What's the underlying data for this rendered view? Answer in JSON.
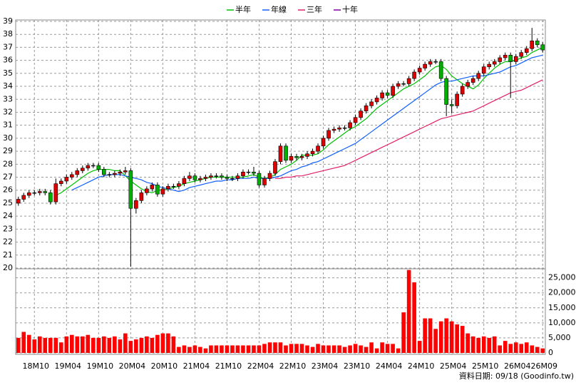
{
  "chart_data": [
    {
      "type": "candlestick",
      "categories": [
        null,
        null,
        null,
        "18M10",
        null,
        null,
        null,
        null,
        null,
        "19M04",
        null,
        null,
        null,
        null,
        null,
        "19M10",
        null,
        null,
        null,
        null,
        null,
        "20M04",
        null,
        null,
        null,
        null,
        null,
        "20M10",
        null,
        null,
        null,
        null,
        null,
        "21M04",
        null,
        null,
        null,
        null,
        null,
        "21M10",
        null,
        null,
        null,
        null,
        null,
        "22M04",
        null,
        null,
        null,
        null,
        null,
        "22M10",
        null,
        null,
        null,
        null,
        null,
        "23M04",
        null,
        null,
        null,
        null,
        null,
        "23M10",
        null,
        null,
        null,
        null,
        null,
        "24M04",
        null,
        null,
        null,
        null,
        null,
        "24M10",
        null,
        null,
        null,
        null,
        null,
        "25M04",
        null,
        null,
        null,
        null,
        null,
        "25M10",
        null,
        null,
        null,
        null,
        null,
        "26M04",
        null,
        null,
        null,
        null,
        "26M09"
      ],
      "open": [
        25.0,
        25.3,
        25.6,
        25.8,
        25.8,
        25.9,
        25.8,
        25.1,
        26.5,
        26.7,
        27.0,
        27.2,
        27.5,
        27.7,
        27.9,
        27.9,
        27.6,
        27.2,
        27.2,
        27.3,
        27.4,
        27.5,
        24.6,
        25.2,
        25.8,
        26.1,
        26.4,
        25.7,
        26.1,
        26.3,
        26.3,
        26.5,
        26.9,
        27.1,
        26.8,
        26.9,
        27.0,
        27.1,
        27.1,
        27.0,
        26.9,
        26.9,
        27.1,
        27.4,
        27.4,
        27.3,
        26.4,
        26.9,
        27.3,
        28.2,
        29.4,
        28.3,
        28.6,
        28.5,
        28.6,
        28.8,
        29.0,
        29.4,
        30.0,
        30.6,
        30.7,
        30.8,
        30.8,
        31.2,
        31.6,
        32.1,
        32.5,
        32.8,
        33.1,
        33.5,
        33.3,
        34.0,
        34.2,
        34.2,
        34.6,
        35.1,
        35.4,
        35.7,
        35.9,
        35.9,
        34.6,
        32.6,
        32.5,
        33.4,
        34.0,
        34.3,
        34.6,
        35.0,
        35.5,
        35.7,
        35.9,
        36.2,
        36.4,
        35.9,
        36.3,
        36.6,
        36.9,
        37.5,
        37.2
      ],
      "high": [
        25.5,
        25.8,
        26.0,
        26.0,
        26.1,
        26.1,
        26.0,
        26.9,
        26.9,
        27.2,
        27.4,
        27.7,
        27.9,
        28.1,
        28.1,
        28.1,
        27.8,
        27.4,
        27.5,
        27.6,
        27.8,
        27.7,
        25.4,
        26.0,
        26.3,
        26.6,
        26.6,
        26.3,
        26.5,
        26.5,
        26.7,
        27.1,
        27.4,
        27.3,
        27.1,
        27.2,
        27.3,
        27.3,
        27.3,
        27.2,
        27.1,
        27.3,
        27.6,
        27.6,
        27.8,
        27.5,
        27.1,
        27.5,
        28.4,
        29.6,
        29.6,
        28.8,
        28.8,
        28.8,
        29.0,
        29.2,
        29.6,
        30.2,
        30.8,
        30.9,
        31.0,
        31.0,
        31.4,
        31.8,
        32.3,
        32.7,
        33.0,
        33.3,
        33.7,
        33.7,
        34.2,
        34.4,
        34.4,
        34.8,
        35.3,
        35.6,
        35.9,
        36.1,
        36.1,
        36.1,
        34.8,
        33.0,
        33.6,
        34.2,
        34.5,
        34.8,
        35.2,
        35.7,
        35.9,
        36.1,
        36.4,
        36.6,
        36.6,
        36.5,
        36.8,
        37.1,
        38.5,
        37.7,
        37.4
      ],
      "low": [
        24.8,
        25.1,
        25.4,
        25.6,
        25.6,
        25.6,
        24.9,
        24.9,
        26.3,
        26.5,
        26.8,
        27.0,
        27.3,
        27.5,
        27.7,
        27.4,
        27.0,
        27.0,
        27.0,
        27.1,
        27.2,
        20.1,
        24.2,
        25.0,
        25.6,
        25.9,
        25.5,
        25.5,
        25.9,
        26.1,
        26.1,
        26.3,
        26.7,
        26.6,
        26.6,
        26.7,
        26.8,
        26.9,
        26.8,
        26.7,
        26.7,
        26.7,
        26.9,
        27.2,
        27.1,
        26.2,
        26.2,
        26.7,
        27.1,
        28.0,
        28.1,
        28.1,
        28.3,
        28.3,
        28.4,
        28.6,
        28.8,
        29.2,
        29.8,
        30.4,
        30.5,
        30.6,
        30.6,
        31.0,
        31.4,
        31.9,
        32.3,
        32.6,
        32.9,
        33.1,
        33.1,
        33.8,
        34.0,
        34.0,
        34.4,
        34.9,
        35.2,
        35.5,
        35.7,
        34.4,
        31.7,
        31.9,
        32.3,
        33.2,
        33.8,
        34.1,
        34.4,
        34.8,
        35.3,
        35.5,
        35.7,
        36.0,
        33.1,
        35.7,
        36.1,
        36.4,
        36.7,
        37.0,
        36.6
      ],
      "close": [
        25.3,
        25.6,
        25.8,
        25.8,
        25.9,
        25.8,
        25.1,
        26.5,
        26.7,
        27.0,
        27.2,
        27.5,
        27.7,
        27.9,
        27.9,
        27.6,
        27.2,
        27.2,
        27.3,
        27.4,
        27.5,
        24.6,
        25.2,
        25.8,
        26.1,
        26.4,
        25.7,
        26.1,
        26.3,
        26.3,
        26.5,
        26.9,
        27.1,
        26.8,
        26.9,
        27.0,
        27.1,
        27.1,
        27.0,
        26.9,
        26.9,
        27.1,
        27.4,
        27.4,
        27.3,
        26.4,
        26.9,
        27.3,
        28.2,
        29.4,
        28.3,
        28.6,
        28.5,
        28.6,
        28.8,
        29.0,
        29.4,
        30.0,
        30.6,
        30.7,
        30.8,
        30.8,
        31.2,
        31.6,
        32.1,
        32.5,
        32.8,
        33.1,
        33.5,
        33.3,
        34.0,
        34.2,
        34.2,
        34.6,
        35.1,
        35.4,
        35.7,
        35.9,
        35.9,
        34.6,
        32.6,
        32.5,
        33.4,
        34.0,
        34.3,
        34.6,
        35.0,
        35.5,
        35.7,
        35.9,
        36.2,
        36.4,
        35.9,
        36.3,
        36.6,
        36.9,
        37.5,
        37.2,
        36.8
      ],
      "up_color": "#e00000",
      "down_color": "#00b000",
      "series": [
        {
          "name": "半年",
          "color": "#00c000",
          "values": [
            null,
            null,
            null,
            null,
            null,
            null,
            null,
            25.6,
            25.8,
            26.1,
            26.4,
            26.7,
            27.0,
            27.3,
            27.5,
            27.6,
            27.6,
            27.6,
            27.5,
            27.5,
            27.1,
            26.7,
            26.4,
            26.1,
            25.9,
            25.8,
            26.0,
            26.0,
            26.1,
            26.2,
            26.3,
            26.5,
            26.6,
            26.7,
            26.8,
            26.9,
            27.0,
            27.0,
            27.0,
            27.0,
            27.0,
            27.0,
            27.0,
            27.1,
            27.2,
            27.0,
            26.9,
            27.0,
            27.2,
            27.6,
            27.8,
            28.0,
            28.3,
            28.7,
            28.7,
            28.7,
            28.8,
            29.1,
            29.5,
            29.8,
            30.1,
            30.4,
            30.7,
            30.9,
            31.2,
            31.5,
            31.9,
            32.3,
            32.6,
            32.9,
            33.2,
            33.5,
            33.8,
            34.0,
            34.2,
            34.5,
            34.8,
            35.2,
            35.5,
            35.6,
            35.3,
            34.8,
            34.5,
            34.2,
            34.0,
            33.8,
            34.1,
            34.6,
            35.0,
            35.4,
            35.7,
            35.9,
            35.9,
            36.0,
            36.2,
            36.3,
            36.6,
            36.8,
            37.0
          ]
        },
        {
          "name": "年線",
          "color": "#1060ff",
          "values": [
            null,
            null,
            null,
            null,
            null,
            null,
            null,
            null,
            null,
            null,
            26.0,
            26.2,
            26.4,
            26.6,
            26.8,
            27.0,
            27.1,
            27.2,
            27.2,
            27.2,
            27.1,
            27.0,
            26.9,
            26.8,
            26.6,
            26.5,
            26.3,
            26.2,
            26.1,
            26.0,
            25.9,
            26.0,
            26.2,
            26.3,
            26.4,
            26.5,
            26.6,
            26.7,
            26.7,
            26.8,
            26.8,
            26.9,
            26.9,
            26.9,
            27.0,
            26.9,
            26.9,
            26.9,
            27.0,
            27.1,
            27.3,
            27.5,
            27.6,
            27.8,
            27.9,
            28.1,
            28.2,
            28.4,
            28.6,
            28.8,
            29.0,
            29.2,
            29.4,
            29.6,
            29.9,
            30.2,
            30.5,
            30.8,
            31.1,
            31.4,
            31.7,
            32.0,
            32.3,
            32.6,
            32.9,
            33.2,
            33.5,
            33.8,
            34.1,
            34.3,
            34.4,
            34.4,
            34.5,
            34.6,
            34.7,
            34.8,
            34.8,
            34.8,
            34.9,
            35.0,
            35.1,
            35.3,
            35.5,
            35.6,
            35.8,
            36.0,
            36.2,
            36.3,
            36.4
          ]
        },
        {
          "name": "三年",
          "color": "#e0206a",
          "values": [
            null,
            null,
            null,
            null,
            null,
            null,
            null,
            null,
            null,
            null,
            null,
            null,
            null,
            null,
            null,
            null,
            null,
            null,
            null,
            null,
            null,
            null,
            null,
            null,
            null,
            null,
            null,
            null,
            null,
            null,
            null,
            null,
            null,
            null,
            null,
            null,
            null,
            null,
            null,
            null,
            null,
            null,
            null,
            null,
            null,
            null,
            null,
            null,
            26.9,
            26.9,
            27.0,
            27.0,
            27.1,
            27.1,
            27.2,
            27.3,
            27.4,
            27.5,
            27.6,
            27.7,
            27.8,
            27.9,
            28.1,
            28.3,
            28.5,
            28.7,
            28.9,
            29.1,
            29.3,
            29.5,
            29.7,
            29.9,
            30.1,
            30.3,
            30.5,
            30.7,
            30.9,
            31.1,
            31.3,
            31.5,
            31.6,
            31.7,
            31.8,
            31.9,
            32.0,
            32.1,
            32.3,
            32.5,
            32.7,
            32.9,
            33.1,
            33.3,
            33.5,
            33.6,
            33.7,
            33.9,
            34.1,
            34.3,
            34.5
          ]
        },
        {
          "name": "十年",
          "color": "#8000a0",
          "values": [
            null,
            null,
            null,
            null,
            null,
            null,
            null,
            null,
            null,
            null,
            null,
            null,
            null,
            null,
            null,
            null,
            null,
            null,
            null,
            null,
            null,
            null,
            null,
            null,
            null,
            null,
            null,
            null,
            null,
            null,
            null,
            null,
            null,
            null,
            null,
            null,
            null,
            null,
            null,
            null,
            null,
            null,
            null,
            null,
            null,
            null,
            null,
            null,
            null,
            null,
            null,
            null,
            null,
            null,
            null,
            null,
            null,
            null,
            null,
            null,
            null,
            null,
            null,
            null,
            null,
            null,
            null,
            null,
            null,
            null,
            null,
            null,
            null,
            null,
            null,
            null,
            null,
            null,
            null,
            null,
            null,
            null,
            null,
            null,
            null,
            null,
            null,
            null,
            null,
            null,
            null,
            null,
            null,
            null,
            null,
            null,
            null,
            null,
            null
          ]
        }
      ],
      "ylim": [
        20,
        39
      ],
      "yticks": [
        20,
        21,
        22,
        23,
        24,
        25,
        26,
        27,
        28,
        29,
        30,
        31,
        32,
        33,
        34,
        35,
        36,
        37,
        38,
        39
      ],
      "grid": true,
      "legend": "top"
    },
    {
      "type": "bar",
      "values": [
        5000,
        7000,
        6000,
        4500,
        5500,
        5000,
        5000,
        5000,
        3500,
        5500,
        6000,
        5500,
        5500,
        6000,
        5000,
        5000,
        5500,
        5000,
        5500,
        4500,
        6500,
        4000,
        4500,
        5000,
        5500,
        5000,
        6000,
        6500,
        6500,
        5500,
        2000,
        2500,
        2000,
        2500,
        2000,
        1500,
        2500,
        2500,
        2500,
        2500,
        2500,
        2500,
        2500,
        2500,
        2500,
        2500,
        3000,
        3500,
        3500,
        3500,
        2500,
        3000,
        3000,
        3000,
        2500,
        2000,
        3000,
        2500,
        2500,
        2500,
        2500,
        2000,
        2500,
        3000,
        2500,
        2000,
        3500,
        1500,
        3500,
        3000,
        3000,
        1500,
        13500,
        27600,
        23500,
        4000,
        11500,
        11500,
        8000,
        10500,
        11500,
        10500,
        9500,
        9000,
        6500,
        5500,
        5000,
        5500,
        5000,
        5500,
        2500,
        4000,
        3000,
        3500,
        3000,
        3500,
        2500,
        2000,
        1500
      ],
      "color": "#ff0000",
      "ylim": [
        0,
        28000
      ],
      "yticks": [
        0,
        {
          "value": 5000,
          "label": "5,000"
        },
        {
          "value": 10000,
          "label": "10,000"
        },
        {
          "value": 15000,
          "label": "15,000"
        },
        {
          "value": 20000,
          "label": "20,000"
        },
        {
          "value": 25000,
          "label": "25,000"
        }
      ],
      "grid": true
    }
  ],
  "footer": "資料日期: 09/18 (Goodinfo.tw)"
}
